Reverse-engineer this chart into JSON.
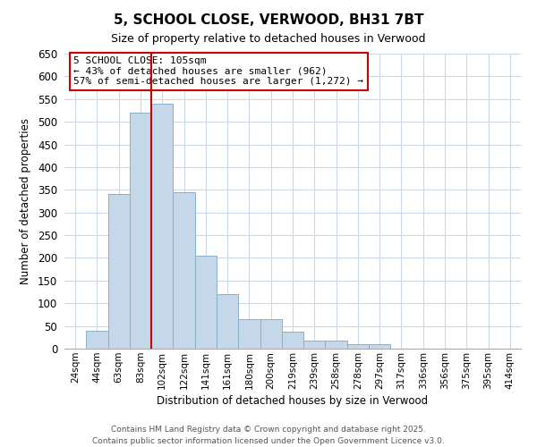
{
  "title": "5, SCHOOL CLOSE, VERWOOD, BH31 7BT",
  "subtitle": "Size of property relative to detached houses in Verwood",
  "xlabel": "Distribution of detached houses by size in Verwood",
  "ylabel": "Number of detached properties",
  "bar_labels": [
    "24sqm",
    "44sqm",
    "63sqm",
    "83sqm",
    "102sqm",
    "122sqm",
    "141sqm",
    "161sqm",
    "180sqm",
    "200sqm",
    "219sqm",
    "239sqm",
    "258sqm",
    "278sqm",
    "297sqm",
    "317sqm",
    "336sqm",
    "356sqm",
    "375sqm",
    "395sqm",
    "414sqm"
  ],
  "bar_values": [
    0,
    40,
    340,
    520,
    540,
    345,
    205,
    120,
    65,
    65,
    38,
    18,
    18,
    10,
    10,
    0,
    0,
    0,
    0,
    0,
    0
  ],
  "bar_color": "#c5d8ea",
  "bar_edge_color": "#8aafc8",
  "highlight_line_index": 4,
  "highlight_color": "#cc0000",
  "ylim": [
    0,
    650
  ],
  "yticks": [
    0,
    50,
    100,
    150,
    200,
    250,
    300,
    350,
    400,
    450,
    500,
    550,
    600,
    650
  ],
  "annotation_title": "5 SCHOOL CLOSE: 105sqm",
  "annotation_line1": "← 43% of detached houses are smaller (962)",
  "annotation_line2": "57% of semi-detached houses are larger (1,272) →",
  "footer1": "Contains HM Land Registry data © Crown copyright and database right 2025.",
  "footer2": "Contains public sector information licensed under the Open Government Licence v3.0.",
  "background_color": "#ffffff",
  "grid_color": "#ccd8e8"
}
